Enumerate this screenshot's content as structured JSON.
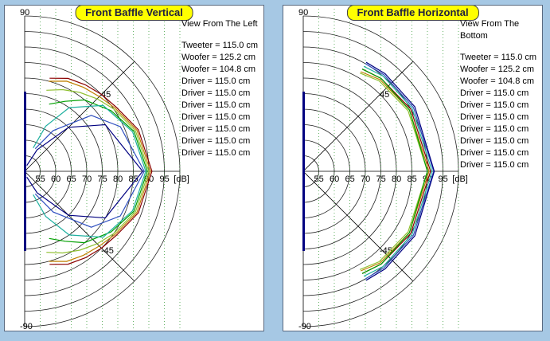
{
  "chart_data": [
    {
      "type": "polar",
      "title": "Front Baffle Vertical",
      "view": "View From The Left",
      "legend": [
        "Tweeter = 115.0 cm",
        "Woofer = 125.2 cm",
        "Woofer = 104.8 cm",
        "Driver = 115.0 cm",
        "Driver = 115.0 cm",
        "Driver = 115.0 cm",
        "Driver = 115.0 cm",
        "Driver = 115.0 cm",
        "Driver = 115.0 cm",
        "Driver = 115.0 cm"
      ],
      "radial_ticks": [
        55,
        60,
        65,
        70,
        75,
        80,
        85,
        90,
        95
      ],
      "radial_unit": "[dB]",
      "angle_labels": [
        "90",
        "45",
        "-45",
        "-90"
      ],
      "series": [
        {
          "color": "#8b0000",
          "values": [
            [
              0,
              91
            ],
            [
              20,
              89
            ],
            [
              35,
              86
            ],
            [
              45,
              85
            ],
            [
              55,
              84
            ],
            [
              65,
              83
            ],
            [
              75,
              81
            ]
          ]
        },
        {
          "color": "#c08000",
          "values": [
            [
              0,
              90.5
            ],
            [
              20,
              88.5
            ],
            [
              35,
              85.5
            ],
            [
              45,
              84
            ],
            [
              55,
              83
            ],
            [
              65,
              82
            ],
            [
              75,
              80
            ]
          ]
        },
        {
          "color": "#90c030",
          "values": [
            [
              0,
              90
            ],
            [
              20,
              88
            ],
            [
              35,
              85
            ],
            [
              45,
              83
            ],
            [
              55,
              81
            ],
            [
              65,
              79
            ],
            [
              75,
              77
            ]
          ]
        },
        {
          "color": "#00a000",
          "values": [
            [
              0,
              89.5
            ],
            [
              20,
              87.5
            ],
            [
              35,
              84
            ],
            [
              50,
              80
            ],
            [
              60,
              76
            ],
            [
              70,
              73
            ]
          ]
        },
        {
          "color": "#20b0a0",
          "values": [
            [
              0,
              89
            ],
            [
              20,
              87
            ],
            [
              40,
              83
            ],
            [
              55,
              75
            ],
            [
              65,
              66
            ],
            [
              70,
              58
            ]
          ]
        },
        {
          "color": "#3050c0",
          "values": [
            [
              0,
              88.5
            ],
            [
              25,
              84
            ],
            [
              40,
              78
            ],
            [
              55,
              66
            ],
            [
              65,
              58
            ]
          ]
        },
        {
          "color": "#000080",
          "values": [
            [
              0,
              88
            ],
            [
              30,
              80
            ],
            [
              45,
              70
            ],
            [
              60,
              58
            ],
            [
              70,
              52
            ]
          ]
        }
      ]
    },
    {
      "type": "polar",
      "title": "Front Baffle Horizontal",
      "view": "View From The Bottom",
      "legend": [
        "Tweeter = 115.0 cm",
        "Woofer = 125.2 cm",
        "Woofer = 104.8 cm",
        "Driver = 115.0 cm",
        "Driver = 115.0 cm",
        "Driver = 115.0 cm",
        "Driver = 115.0 cm",
        "Driver = 115.0 cm",
        "Driver = 115.0 cm",
        "Driver = 115.0 cm"
      ],
      "radial_ticks": [
        55,
        60,
        65,
        70,
        75,
        80,
        85,
        90,
        95
      ],
      "radial_unit": "[dB]",
      "angle_labels": [
        "90",
        "45",
        "-45",
        "-90"
      ],
      "series": [
        {
          "color": "#8b0000",
          "values": [
            [
              0,
              91
            ],
            [
              30,
              90
            ],
            [
              50,
              89
            ],
            [
              60,
              88
            ]
          ]
        },
        {
          "color": "#c08000",
          "values": [
            [
              0,
              90.5
            ],
            [
              30,
              89.5
            ],
            [
              50,
              88.5
            ],
            [
              60,
              87
            ]
          ]
        },
        {
          "color": "#90c030",
          "values": [
            [
              0,
              90
            ],
            [
              30,
              89
            ],
            [
              50,
              88
            ],
            [
              60,
              86.5
            ]
          ]
        },
        {
          "color": "#00a000",
          "values": [
            [
              0,
              90
            ],
            [
              30,
              89.5
            ],
            [
              50,
              89
            ],
            [
              60,
              88
            ]
          ]
        },
        {
          "color": "#20b0a0",
          "values": [
            [
              0,
              91.5
            ],
            [
              30,
              90.5
            ],
            [
              50,
              90
            ],
            [
              60,
              89
            ]
          ]
        },
        {
          "color": "#3050c0",
          "values": [
            [
              0,
              92
            ],
            [
              30,
              91
            ],
            [
              50,
              90.5
            ],
            [
              60,
              90
            ]
          ]
        },
        {
          "color": "#000080",
          "values": [
            [
              0,
              92.2
            ],
            [
              30,
              91.5
            ],
            [
              50,
              91
            ],
            [
              60,
              90.5
            ]
          ]
        }
      ]
    }
  ]
}
